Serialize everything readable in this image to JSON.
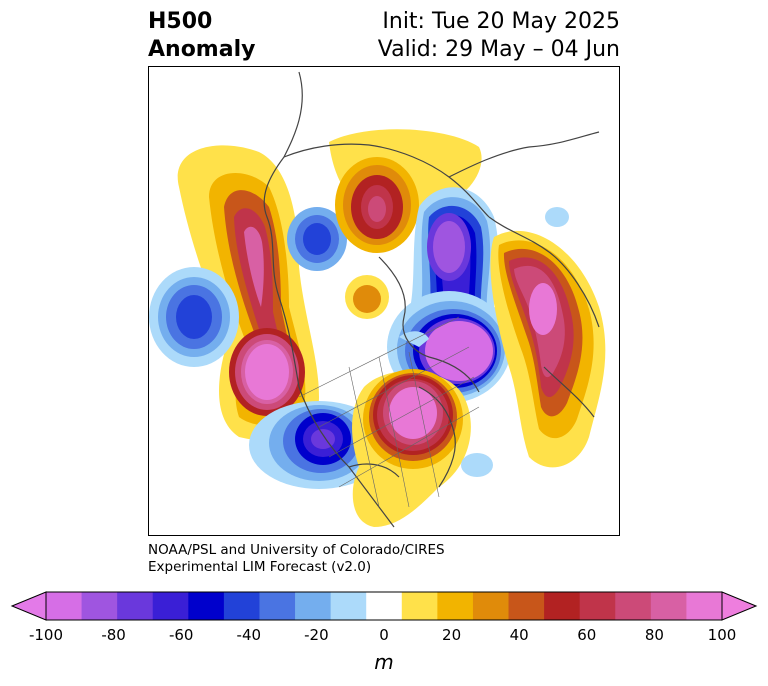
{
  "header": {
    "title_line1": "H500",
    "title_line2": "Anomaly",
    "init": "Init: Tue 20 May 2025",
    "valid": "Valid: 29 May – 04 Jun"
  },
  "credit": {
    "line1": "NOAA/PSL and University of Colorado/CIRES",
    "line2": "Experimental LIM Forecast (v2.0)"
  },
  "colorbar": {
    "unit": "m",
    "ticks": [
      "-100",
      "-80",
      "-60",
      "-40",
      "-20",
      "0",
      "20",
      "40",
      "60",
      "80",
      "100"
    ],
    "levels": [
      -100,
      -90,
      -80,
      -70,
      -60,
      -50,
      -40,
      -30,
      -20,
      -10,
      10,
      20,
      30,
      40,
      50,
      60,
      70,
      80,
      90,
      100
    ],
    "colors": [
      "#d66ee6",
      "#9f55e0",
      "#6a38dc",
      "#3a1fd6",
      "#0000cc",
      "#2242d8",
      "#4a74e2",
      "#74aeee",
      "#acdafa",
      "#ffffff",
      "#ffe14a",
      "#f2b400",
      "#e08b0a",
      "#c8561a",
      "#b22222",
      "#c0344a",
      "#cc4a78",
      "#d860a4",
      "#e878d6"
    ],
    "under_color": "#e37ae8",
    "over_color": "#ee7ede"
  }
}
